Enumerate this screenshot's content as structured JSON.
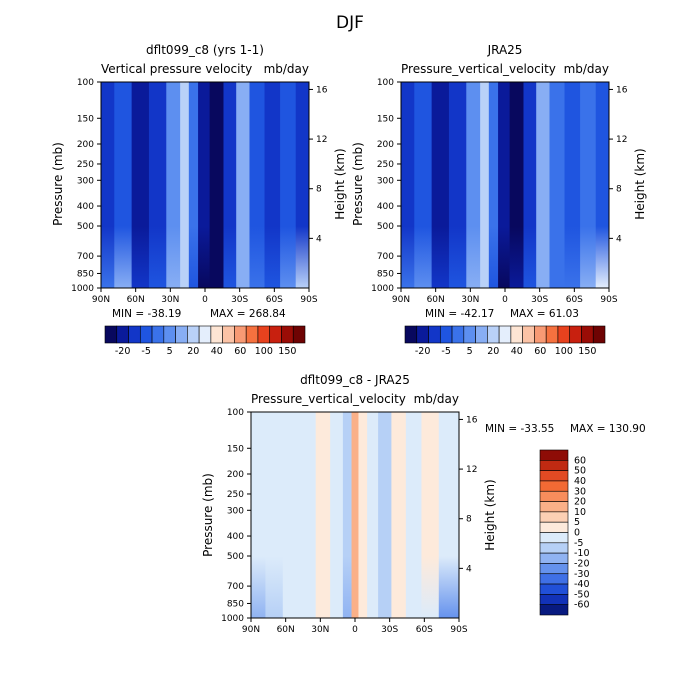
{
  "page_title": "DJF",
  "chart_data": [
    {
      "type": "heatmap",
      "panel": "model",
      "title": "dflt099_c8 (yrs 1-1)",
      "variable": "Vertical pressure velocity",
      "units": "mb/day",
      "ylabel": "Pressure (mb)",
      "y2label": "Height (km)",
      "x_ticks": [
        "90N",
        "60N",
        "30N",
        "0",
        "30S",
        "60S",
        "90S"
      ],
      "y_ticks": [
        "100",
        "150",
        "200",
        "250",
        "300",
        "400",
        "500",
        "700",
        "850",
        "1000"
      ],
      "y_tick_values": [
        100,
        150,
        200,
        250,
        300,
        400,
        500,
        700,
        850,
        1000
      ],
      "y2_ticks": [
        "4",
        "8",
        "12",
        "16"
      ],
      "y2_tick_values": [
        4,
        8,
        12,
        16
      ],
      "min_label": "MIN = -38.19",
      "max_label": "MAX = 268.84",
      "colorbar_labels": [
        "-20",
        "-5",
        "5",
        "20",
        "40",
        "60",
        "100",
        "150"
      ],
      "colorbar_colors": [
        "#08085e",
        "#0a1a9a",
        "#1236c8",
        "#1f55e0",
        "#3a72ea",
        "#5d8ff0",
        "#88aef4",
        "#b9d1f8",
        "#e4eefc",
        "#fde5d4",
        "#fbc3a6",
        "#f89a74",
        "#f5713f",
        "#e8421e",
        "#c8200f",
        "#9a0c06",
        "#6e0303"
      ],
      "bands": [
        {
          "lat": 85,
          "level": 2,
          "bottom_level": 4
        },
        {
          "lat": 72,
          "level": 3,
          "bottom_level": 6
        },
        {
          "lat": 55,
          "level": 1,
          "bottom_level": 2
        },
        {
          "lat": 42,
          "level": 2,
          "bottom_level": 3
        },
        {
          "lat": 25,
          "level": 5,
          "bottom_level": 6
        },
        {
          "lat": 18,
          "level": 7,
          "bottom_level": 7
        },
        {
          "lat": 10,
          "level": 4,
          "bottom_level": 3
        },
        {
          "lat": 2,
          "level": 1,
          "bottom_level": 0
        },
        {
          "lat": -10,
          "level": 0,
          "bottom_level": 0
        },
        {
          "lat": -22,
          "level": 2,
          "bottom_level": 3
        },
        {
          "lat": -32,
          "level": 6,
          "bottom_level": 6
        },
        {
          "lat": -45,
          "level": 3,
          "bottom_level": 4
        },
        {
          "lat": -58,
          "level": 2,
          "bottom_level": 3
        },
        {
          "lat": -72,
          "level": 3,
          "bottom_level": 5
        },
        {
          "lat": -85,
          "level": 2,
          "bottom_level": 7
        }
      ]
    },
    {
      "type": "heatmap",
      "panel": "obs",
      "title": "JRA25",
      "variable": "Pressure_vertical_velocity",
      "units": "mb/day",
      "ylabel": "Pressure (mb)",
      "y2label": "Height (km)",
      "x_ticks": [
        "90N",
        "60N",
        "30N",
        "0",
        "30S",
        "60S",
        "90S"
      ],
      "y_ticks": [
        "100",
        "150",
        "200",
        "250",
        "300",
        "400",
        "500",
        "700",
        "850",
        "1000"
      ],
      "y_tick_values": [
        100,
        150,
        200,
        250,
        300,
        400,
        500,
        700,
        850,
        1000
      ],
      "y2_ticks": [
        "4",
        "8",
        "12",
        "16"
      ],
      "y2_tick_values": [
        4,
        8,
        12,
        16
      ],
      "min_label": "MIN = -42.17",
      "max_label": "MAX = 61.03",
      "colorbar_labels": [
        "-20",
        "-5",
        "5",
        "20",
        "40",
        "60",
        "100",
        "150"
      ],
      "colorbar_colors": [
        "#08085e",
        "#0a1a9a",
        "#1236c8",
        "#1f55e0",
        "#3a72ea",
        "#5d8ff0",
        "#88aef4",
        "#b9d1f8",
        "#e4eefc",
        "#fde5d4",
        "#fbc3a6",
        "#f89a74",
        "#f5713f",
        "#e8421e",
        "#c8200f",
        "#9a0c06",
        "#6e0303"
      ],
      "bands": [
        {
          "lat": 85,
          "level": 2,
          "bottom_level": 4
        },
        {
          "lat": 72,
          "level": 3,
          "bottom_level": 5
        },
        {
          "lat": 55,
          "level": 1,
          "bottom_level": 2
        },
        {
          "lat": 42,
          "level": 2,
          "bottom_level": 3
        },
        {
          "lat": 25,
          "level": 5,
          "bottom_level": 6
        },
        {
          "lat": 18,
          "level": 7,
          "bottom_level": 7
        },
        {
          "lat": 10,
          "level": 4,
          "bottom_level": 3
        },
        {
          "lat": 2,
          "level": 1,
          "bottom_level": 0
        },
        {
          "lat": -10,
          "level": 0,
          "bottom_level": 1
        },
        {
          "lat": -22,
          "level": 2,
          "bottom_level": 3
        },
        {
          "lat": -32,
          "level": 6,
          "bottom_level": 6
        },
        {
          "lat": -45,
          "level": 4,
          "bottom_level": 4
        },
        {
          "lat": -58,
          "level": 3,
          "bottom_level": 4
        },
        {
          "lat": -72,
          "level": 4,
          "bottom_level": 6
        },
        {
          "lat": -85,
          "level": 3,
          "bottom_level": 8
        }
      ]
    },
    {
      "type": "heatmap",
      "panel": "diff",
      "title": "dflt099_c8 - JRA25",
      "variable": "Pressure_vertical_velocity",
      "units": "mb/day",
      "ylabel": "Pressure (mb)",
      "y2label": "Height (km)",
      "x_ticks": [
        "90N",
        "60N",
        "30N",
        "0",
        "30S",
        "60S",
        "90S"
      ],
      "y_ticks": [
        "100",
        "150",
        "200",
        "250",
        "300",
        "400",
        "500",
        "700",
        "850",
        "1000"
      ],
      "y_tick_values": [
        100,
        150,
        200,
        250,
        300,
        400,
        500,
        700,
        850,
        1000
      ],
      "y2_ticks": [
        "4",
        "8",
        "12",
        "16"
      ],
      "y2_tick_values": [
        4,
        8,
        12,
        16
      ],
      "min_label": "MIN = -33.55",
      "max_label": "MAX = 130.90",
      "colorbar_labels": [
        "60",
        "50",
        "40",
        "30",
        "20",
        "10",
        "5",
        "0",
        "-5",
        "-10",
        "-20",
        "-30",
        "-40",
        "-50",
        "-60"
      ],
      "colorbar_colors": [
        "#8e0c06",
        "#c02a12",
        "#e24a23",
        "#f26a34",
        "#f78d5c",
        "#fab088",
        "#fcd0b4",
        "#fdeadb",
        "#dcebfa",
        "#b6d0f6",
        "#90b3f2",
        "#6592ed",
        "#3f70e6",
        "#2150d8",
        "#1232b8",
        "#081a80"
      ],
      "bands": [
        {
          "lat": 85,
          "level": 8,
          "bottom_level": 10
        },
        {
          "lat": 70,
          "level": 8,
          "bottom_level": 9
        },
        {
          "lat": 55,
          "level": 8,
          "bottom_level": 8
        },
        {
          "lat": 40,
          "level": 8,
          "bottom_level": 8
        },
        {
          "lat": 28,
          "level": 7,
          "bottom_level": 7
        },
        {
          "lat": 15,
          "level": 8,
          "bottom_level": 8
        },
        {
          "lat": 6,
          "level": 9,
          "bottom_level": 10
        },
        {
          "lat": 0,
          "level": 5,
          "bottom_level": 5
        },
        {
          "lat": -6,
          "level": 7,
          "bottom_level": 7
        },
        {
          "lat": -15,
          "level": 8,
          "bottom_level": 8
        },
        {
          "lat": -25,
          "level": 9,
          "bottom_level": 9
        },
        {
          "lat": -38,
          "level": 7,
          "bottom_level": 7
        },
        {
          "lat": -50,
          "level": 8,
          "bottom_level": 8
        },
        {
          "lat": -65,
          "level": 7,
          "bottom_level": 8
        },
        {
          "lat": -80,
          "level": 8,
          "bottom_level": 11
        }
      ]
    }
  ]
}
